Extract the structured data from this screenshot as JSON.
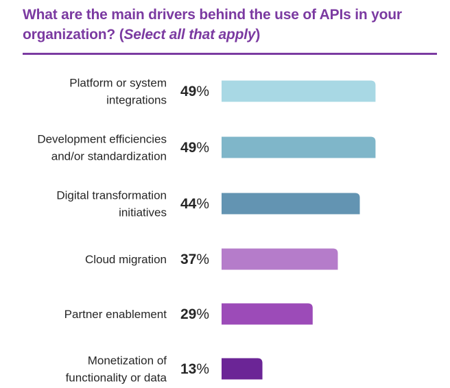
{
  "title": {
    "main": "What are the main drivers behind the use of APIs in your organization? (",
    "italic": "Select all that apply",
    "close": ")"
  },
  "colors": {
    "title": "#7b3aa1",
    "bars": [
      "#a8d8e4",
      "#7fb6c9",
      "#6394b2",
      "#b57cca",
      "#9c4bb8",
      "#6b2596"
    ]
  },
  "chart_data": {
    "type": "bar",
    "orientation": "horizontal",
    "categories": [
      [
        "Platform or system",
        "integrations"
      ],
      [
        "Development efficiencies",
        "and/or standardization"
      ],
      [
        "Digital transformation",
        "initiatives"
      ],
      [
        "Cloud migration"
      ],
      [
        "Partner enablement"
      ],
      [
        "Monetization of",
        "functionality or data"
      ]
    ],
    "values": [
      49,
      49,
      44,
      37,
      29,
      13
    ],
    "value_labels": [
      "49",
      "49",
      "44",
      "37",
      "29",
      "13"
    ],
    "unit": "%",
    "xlim": [
      0,
      100
    ],
    "grid": false,
    "legend": "none"
  }
}
